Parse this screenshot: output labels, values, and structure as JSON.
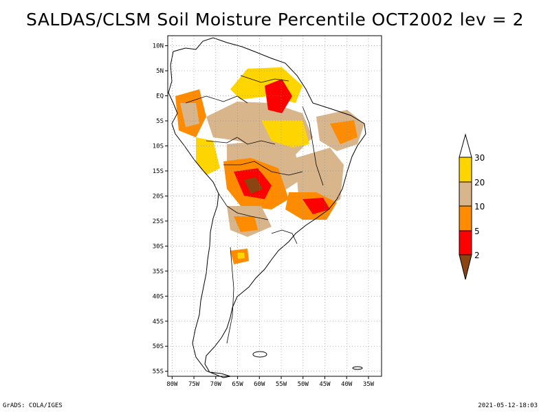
{
  "title": "SALDAS/CLSM Soil Moisture Percentile OCT2002 lev = 2",
  "footer": {
    "left": "GrADS: COLA/IGES",
    "right": "2021-05-12-18:03"
  },
  "map": {
    "lat_labels": [
      "10N",
      "5N",
      "EQ",
      "5S",
      "10S",
      "15S",
      "20S",
      "25S",
      "30S",
      "35S",
      "40S",
      "45S",
      "50S",
      "55S"
    ],
    "lat_values": [
      10,
      5,
      0,
      -5,
      -10,
      -15,
      -20,
      -25,
      -30,
      -35,
      -40,
      -45,
      -50,
      -55
    ],
    "lon_labels": [
      "80W",
      "75W",
      "70W",
      "65W",
      "60W",
      "55W",
      "50W",
      "45W",
      "40W",
      "35W"
    ],
    "lon_values": [
      -80,
      -75,
      -70,
      -65,
      -60,
      -55,
      -50,
      -45,
      -40,
      -35
    ],
    "lon_range": [
      -81,
      -32
    ],
    "lat_range": [
      -56,
      12
    ]
  },
  "colorbar": {
    "labels": [
      "30",
      "20",
      "10",
      "5",
      "2"
    ],
    "colors": {
      "above30": "#ffffff",
      "20-30": "#ffd500",
      "10-20": "#d8b58a",
      "5-10": "#ff8c00",
      "2-5": "#ff0000",
      "below2": "#8b4513"
    }
  }
}
